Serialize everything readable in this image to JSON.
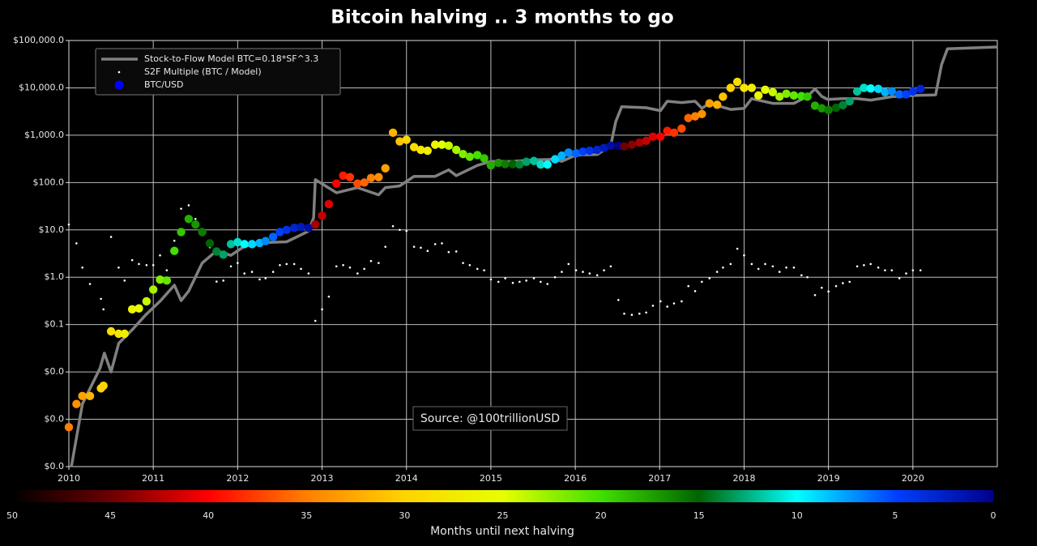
{
  "chart_data": {
    "type": "scatter",
    "title": "Bitcoin halving .. 3 months to go",
    "annotation": "Source: @100trillionUSD",
    "yscale": "log",
    "grid": true,
    "legend": "upper left",
    "xlim": [
      2010,
      2021
    ],
    "xticks": [
      2010,
      2011,
      2012,
      2013,
      2014,
      2015,
      2016,
      2017,
      2018,
      2019,
      2020
    ],
    "ylim": [
      0.0001,
      100000
    ],
    "yticks": [
      {
        "value": 100000,
        "label": "$100,000.0"
      },
      {
        "value": 10000,
        "label": "$10,000.0"
      },
      {
        "value": 1000,
        "label": "$1,000.0"
      },
      {
        "value": 100,
        "label": "$100.0"
      },
      {
        "value": 10,
        "label": "$10.0"
      },
      {
        "value": 1,
        "label": "$1.0"
      },
      {
        "value": 0.1,
        "label": "$0.1"
      },
      {
        "value": 0.01,
        "label": "$0.0"
      },
      {
        "value": 0.001,
        "label": "$0.0"
      },
      {
        "value": 0.0001,
        "label": "$0.0"
      }
    ],
    "colorbar": {
      "label": "Months until next halving",
      "lim": [
        50,
        0
      ],
      "ticks": [
        50,
        45,
        40,
        35,
        30,
        25,
        20,
        15,
        10,
        5,
        0
      ],
      "colors": [
        "#000000",
        "#6b0000",
        "#ff0000",
        "#ff7f00",
        "#ffd400",
        "#e6ff00",
        "#40e000",
        "#006400",
        "#00ffff",
        "#0040ff",
        "#00008b"
      ]
    },
    "x": [
      2010.0,
      2010.09,
      2010.16,
      2010.25,
      2010.38,
      2010.41,
      2010.5,
      2010.59,
      2010.66,
      2010.75,
      2010.83,
      2010.92,
      2011.0,
      2011.08,
      2011.16,
      2011.25,
      2011.33,
      2011.42,
      2011.5,
      2011.58,
      2011.67,
      2011.75,
      2011.83,
      2011.92,
      2012.0,
      2012.08,
      2012.17,
      2012.26,
      2012.33,
      2012.42,
      2012.5,
      2012.58,
      2012.67,
      2012.75,
      2012.84,
      2012.92,
      2013.0,
      2013.08,
      2013.17,
      2013.25,
      2013.33,
      2013.42,
      2013.5,
      2013.58,
      2013.67,
      2013.75,
      2013.84,
      2013.92,
      2014.0,
      2014.09,
      2014.17,
      2014.25,
      2014.34,
      2014.42,
      2014.5,
      2014.59,
      2014.67,
      2014.75,
      2014.84,
      2014.92,
      2015.0,
      2015.09,
      2015.17,
      2015.26,
      2015.34,
      2015.42,
      2015.51,
      2015.59,
      2015.67,
      2015.76,
      2015.84,
      2015.92,
      2016.01,
      2016.09,
      2016.17,
      2016.26,
      2016.34,
      2016.42,
      2016.51,
      2016.58,
      2016.67,
      2016.76,
      2016.84,
      2016.92,
      2017.01,
      2017.09,
      2017.17,
      2017.26,
      2017.34,
      2017.42,
      2017.5,
      2017.59,
      2017.68,
      2017.75,
      2017.84,
      2017.92,
      2018.0,
      2018.09,
      2018.17,
      2018.25,
      2018.34,
      2018.42,
      2018.5,
      2018.59,
      2018.68,
      2018.75,
      2018.84,
      2018.92,
      2019.0,
      2019.09,
      2019.17,
      2019.25,
      2019.34,
      2019.42,
      2019.5,
      2019.59,
      2019.67,
      2019.75,
      2019.84,
      2019.92,
      2020.0,
      2020.09
    ],
    "series": [
      {
        "name": "Stock-to-Flow Model BTC=0.18*SF^3.3",
        "type": "line",
        "color": "#808080",
        "x": [
          2010.03,
          2010.16,
          2010.37,
          2010.42,
          2010.5,
          2010.59,
          2010.76,
          2010.91,
          2011.08,
          2011.25,
          2011.33,
          2011.42,
          2011.58,
          2011.75,
          2011.92,
          2012.08,
          2012.33,
          2012.58,
          2012.84,
          2012.9,
          2012.92,
          2013.17,
          2013.42,
          2013.67,
          2013.75,
          2013.92,
          2014.09,
          2014.34,
          2014.5,
          2014.59,
          2014.84,
          2015.0,
          2015.26,
          2015.51,
          2015.76,
          2015.84,
          2016.01,
          2016.26,
          2016.42,
          2016.48,
          2016.55,
          2016.84,
          2017.01,
          2017.09,
          2017.26,
          2017.42,
          2017.5,
          2017.59,
          2017.84,
          2018.0,
          2018.09,
          2018.34,
          2018.59,
          2018.75,
          2018.84,
          2018.92,
          2018.99,
          2019.17,
          2019.34,
          2019.5,
          2019.75,
          2020.0,
          2020.27,
          2020.34,
          2020.41,
          2021.0
        ],
        "values": [
          0.0001,
          0.0021,
          0.012,
          0.025,
          0.01,
          0.04,
          0.081,
          0.16,
          0.31,
          0.68,
          0.32,
          0.51,
          2.0,
          3.6,
          2.9,
          4.5,
          5.4,
          5.6,
          9.4,
          18,
          115,
          61,
          78,
          55,
          78,
          85,
          135,
          135,
          185,
          140,
          230,
          280,
          280,
          300,
          310,
          280,
          380,
          390,
          600,
          1950,
          4000,
          3800,
          3300,
          5200,
          4900,
          5200,
          3700,
          4700,
          3500,
          3700,
          5900,
          4700,
          4700,
          6600,
          9500,
          6600,
          5700,
          5900,
          5900,
          5500,
          6500,
          6900,
          7100,
          31000,
          67000,
          73000
        ]
      },
      {
        "name": "S2F Multiple (BTC / Model)",
        "type": "scatter",
        "size": "small",
        "color": "#ffffff",
        "values": [
          13,
          5.2,
          1.6,
          0.72,
          0.35,
          0.21,
          7.1,
          1.6,
          0.85,
          2.3,
          1.9,
          1.8,
          1.8,
          2.9,
          1.4,
          5.9,
          28,
          33,
          17,
          8,
          4.3,
          0.81,
          0.85,
          1.7,
          2.0,
          1.2,
          1.3,
          0.9,
          0.95,
          1.3,
          1.8,
          1.9,
          1.9,
          1.5,
          1.2,
          0.12,
          0.21,
          0.39,
          1.7,
          1.8,
          1.6,
          1.2,
          1.5,
          2.2,
          2.0,
          4.4,
          12,
          10,
          9.5,
          4.4,
          4.2,
          3.6,
          5.0,
          5.2,
          3.4,
          3.5,
          2.0,
          1.8,
          1.5,
          1.4,
          0.9,
          0.8,
          0.95,
          0.76,
          0.8,
          0.85,
          0.95,
          0.8,
          0.72,
          1.0,
          1.3,
          1.9,
          1.4,
          1.3,
          1.2,
          1.1,
          1.4,
          1.7,
          0.33,
          0.17,
          0.16,
          0.17,
          0.18,
          0.25,
          0.31,
          0.24,
          0.28,
          0.31,
          0.65,
          0.51,
          0.8,
          0.95,
          1.3,
          1.6,
          1.9,
          4.0,
          2.9,
          1.9,
          1.5,
          1.9,
          1.7,
          1.3,
          1.6,
          1.6,
          1.1,
          1.0,
          0.42,
          0.6,
          0.5,
          0.65,
          0.75,
          0.8,
          1.7,
          1.8,
          1.9,
          1.6,
          1.4,
          1.4,
          0.95,
          1.2,
          1.4,
          1.4
        ]
      },
      {
        "name": "BTC/USD",
        "type": "scatter",
        "size": "large",
        "color": "#0000ff",
        "values": [
          0.00068,
          0.0021,
          0.0031,
          0.0031,
          0.0045,
          0.0051,
          0.072,
          0.064,
          0.064,
          0.21,
          0.22,
          0.31,
          0.55,
          0.89,
          0.85,
          3.6,
          9,
          17,
          13,
          9,
          5.2,
          3.5,
          3.0,
          5.0,
          5.5,
          5.0,
          5.0,
          5.3,
          5.8,
          7.1,
          9.0,
          10,
          11,
          11.5,
          11,
          13,
          20,
          35,
          95,
          140,
          130,
          95,
          100,
          125,
          130,
          200,
          1130,
          740,
          800,
          560,
          490,
          470,
          630,
          630,
          600,
          490,
          400,
          350,
          380,
          325,
          230,
          260,
          245,
          245,
          240,
          275,
          285,
          240,
          240,
          310,
          370,
          430,
          415,
          450,
          470,
          490,
          540,
          600,
          600,
          580,
          630,
          700,
          760,
          930,
          930,
          1230,
          1130,
          1380,
          2300,
          2500,
          2800,
          4700,
          4400,
          6500,
          10000,
          13400,
          10000,
          10000,
          6900,
          9100,
          8100,
          6500,
          7500,
          6900,
          6700,
          6500,
          4200,
          3700,
          3400,
          3800,
          4300,
          5200,
          8400,
          10000,
          9700,
          9500,
          8100,
          8500,
          7300,
          7300,
          8400,
          9500
        ],
        "months": [
          35,
          34,
          33,
          32,
          30,
          30,
          29,
          28,
          27,
          26,
          25,
          24,
          23,
          22,
          21,
          20,
          19,
          18,
          17,
          16,
          15,
          14,
          13,
          12,
          11,
          10,
          9,
          8,
          7,
          6,
          5,
          4,
          3,
          2,
          1,
          43,
          42,
          41,
          40,
          39,
          38,
          37,
          36,
          35,
          34,
          33,
          32,
          31,
          30,
          29,
          28,
          27,
          26,
          25,
          24,
          23,
          22,
          21,
          20,
          19,
          18,
          17,
          16,
          15,
          14,
          13,
          12,
          11,
          10,
          9,
          8,
          7,
          6,
          5,
          4,
          3,
          2,
          1,
          0,
          45,
          44,
          43,
          42,
          41,
          40,
          39,
          38,
          37,
          36,
          35,
          34,
          33,
          32,
          31,
          30,
          29,
          28,
          27,
          26,
          25,
          24,
          23,
          22,
          21,
          20,
          19,
          18,
          17,
          16,
          15,
          14,
          13,
          12,
          11,
          10,
          9,
          8,
          7,
          6,
          5,
          4,
          3
        ]
      }
    ]
  }
}
